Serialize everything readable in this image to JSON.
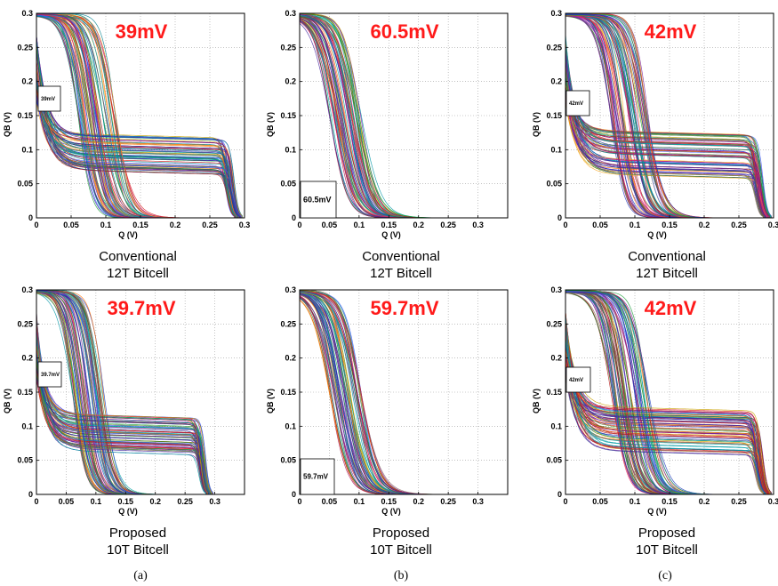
{
  "figure": {
    "subfigure_labels": [
      "(a)",
      "(b)",
      "(c)"
    ]
  },
  "chart_data": [
    {
      "type": "line",
      "subtitle": "39mV",
      "caption_lines": [
        "Conventional",
        "12T Bitcell"
      ],
      "xlabel": "Q (V)",
      "ylabel": "QB (V)",
      "xlim": [
        0,
        0.3
      ],
      "ylim": [
        0,
        0.3
      ],
      "xticks": [
        "0",
        "0.05",
        "0.1",
        "0.15",
        "0.2",
        "0.25",
        "0.3"
      ],
      "yticks": [
        "0",
        "0.05",
        "0.1",
        "0.15",
        "0.2",
        "0.25",
        "0.3"
      ],
      "grid": true,
      "annotation": "39mV",
      "curve_family": "butterfly",
      "switching_threshold_range": [
        0.06,
        0.115
      ],
      "low_plateau_range": [
        0.07,
        0.125
      ],
      "series": [
        {
          "values": [
            [
              0,
              0.298
            ],
            [
              0.05,
              0.296
            ],
            [
              0.07,
              0.26
            ],
            [
              0.085,
              0.15
            ],
            [
              0.1,
              0.02
            ],
            [
              0.15,
              0
            ]
          ]
        },
        {
          "values": [
            [
              0,
              0.2
            ],
            [
              0.03,
              0.12
            ],
            [
              0.1,
              0.1
            ],
            [
              0.25,
              0.08
            ],
            [
              0.29,
              0.02
            ],
            [
              0.298,
              0
            ]
          ]
        }
      ]
    },
    {
      "type": "line",
      "subtitle": "60.5mV",
      "caption_lines": [
        "Conventional",
        "12T Bitcell"
      ],
      "xlabel": "Q (V)",
      "ylabel": "QB (V)",
      "xlim": [
        0,
        0.35
      ],
      "ylim": [
        0,
        0.3
      ],
      "xticks": [
        "0",
        "0.05",
        "0.1",
        "0.15",
        "0.2",
        "0.25",
        "0.3"
      ],
      "yticks": [
        "0",
        "0.05",
        "0.1",
        "0.15",
        "0.2",
        "0.25",
        "0.3"
      ],
      "grid": true,
      "annotation": "60.5mV",
      "curve_family": "sigmoid",
      "switching_threshold_range": [
        0.05,
        0.105
      ],
      "series": [
        {
          "values": [
            [
              0,
              0.298
            ],
            [
              0.04,
              0.29
            ],
            [
              0.065,
              0.2
            ],
            [
              0.08,
              0.1
            ],
            [
              0.1,
              0.02
            ],
            [
              0.18,
              0
            ]
          ]
        }
      ]
    },
    {
      "type": "line",
      "subtitle": "42mV",
      "caption_lines": [
        "Conventional",
        "12T Bitcell"
      ],
      "xlabel": "Q (V)",
      "ylabel": "QB (V)",
      "xlim": [
        0,
        0.3
      ],
      "ylim": [
        0,
        0.3
      ],
      "xticks": [
        "0",
        "0.05",
        "0.1",
        "0.15",
        "0.2",
        "0.25",
        "0.3"
      ],
      "yticks": [
        "0",
        "0.05",
        "0.1",
        "0.15",
        "0.2",
        "0.25",
        "0.3"
      ],
      "grid": true,
      "annotation": "42mV",
      "curve_family": "butterfly",
      "switching_threshold_range": [
        0.065,
        0.12
      ],
      "low_plateau_range": [
        0.065,
        0.13
      ],
      "series": [
        {
          "values": [
            [
              0,
              0.298
            ],
            [
              0.05,
              0.295
            ],
            [
              0.075,
              0.25
            ],
            [
              0.09,
              0.15
            ],
            [
              0.105,
              0.02
            ],
            [
              0.15,
              0
            ]
          ]
        },
        {
          "values": [
            [
              0,
              0.18
            ],
            [
              0.03,
              0.12
            ],
            [
              0.1,
              0.1
            ],
            [
              0.25,
              0.085
            ],
            [
              0.29,
              0.02
            ],
            [
              0.298,
              0
            ]
          ]
        }
      ]
    },
    {
      "type": "line",
      "subtitle": "39.7mV",
      "caption_lines": [
        "Proposed",
        "10T Bitcell"
      ],
      "xlabel": "Q (V)",
      "ylabel": "QB (V)",
      "xlim": [
        0,
        0.35
      ],
      "ylim": [
        0,
        0.3
      ],
      "xticks": [
        "0",
        "0.05",
        "0.1",
        "0.15",
        "0.2",
        "0.25",
        "0.3"
      ],
      "yticks": [
        "0",
        "0.05",
        "0.1",
        "0.15",
        "0.2",
        "0.25",
        "0.3"
      ],
      "grid": true,
      "annotation": "39.7mV",
      "curve_family": "butterfly",
      "switching_threshold_range": [
        0.06,
        0.115
      ],
      "low_plateau_range": [
        0.065,
        0.12
      ],
      "series": [
        {
          "values": [
            [
              0,
              0.298
            ],
            [
              0.05,
              0.296
            ],
            [
              0.07,
              0.26
            ],
            [
              0.085,
              0.15
            ],
            [
              0.1,
              0.02
            ],
            [
              0.15,
              0
            ]
          ]
        },
        {
          "values": [
            [
              0,
              0.19
            ],
            [
              0.03,
              0.12
            ],
            [
              0.1,
              0.095
            ],
            [
              0.25,
              0.08
            ],
            [
              0.29,
              0.02
            ],
            [
              0.298,
              0
            ]
          ]
        }
      ]
    },
    {
      "type": "line",
      "subtitle": "59.7mV",
      "caption_lines": [
        "Proposed",
        "10T Bitcell"
      ],
      "xlabel": "Q (V)",
      "ylabel": "QB (V)",
      "xlim": [
        0,
        0.35
      ],
      "ylim": [
        0,
        0.3
      ],
      "xticks": [
        "0",
        "0.05",
        "0.1",
        "0.15",
        "0.2",
        "0.25",
        "0.3"
      ],
      "yticks": [
        "0",
        "0.05",
        "0.1",
        "0.15",
        "0.2",
        "0.25",
        "0.3"
      ],
      "grid": true,
      "annotation": "59.7mV",
      "curve_family": "sigmoid",
      "switching_threshold_range": [
        0.05,
        0.105
      ],
      "series": [
        {
          "values": [
            [
              0,
              0.298
            ],
            [
              0.04,
              0.29
            ],
            [
              0.065,
              0.2
            ],
            [
              0.08,
              0.1
            ],
            [
              0.1,
              0.02
            ],
            [
              0.18,
              0
            ]
          ]
        }
      ]
    },
    {
      "type": "line",
      "subtitle": "42mV",
      "caption_lines": [
        "Proposed",
        "10T Bitcell"
      ],
      "xlabel": "Q (V)",
      "ylabel": "QB (V)",
      "xlim": [
        0,
        0.3
      ],
      "ylim": [
        0,
        0.3
      ],
      "xticks": [
        "0",
        "0.05",
        "0.1",
        "0.15",
        "0.2",
        "0.25",
        "0.3"
      ],
      "yticks": [
        "0",
        "0.05",
        "0.1",
        "0.15",
        "0.2",
        "0.25",
        "0.3"
      ],
      "grid": true,
      "annotation": "42mV",
      "curve_family": "butterfly",
      "switching_threshold_range": [
        0.065,
        0.12
      ],
      "low_plateau_range": [
        0.065,
        0.13
      ],
      "series": [
        {
          "values": [
            [
              0,
              0.298
            ],
            [
              0.05,
              0.295
            ],
            [
              0.075,
              0.25
            ],
            [
              0.09,
              0.15
            ],
            [
              0.105,
              0.02
            ],
            [
              0.15,
              0
            ]
          ]
        },
        {
          "values": [
            [
              0,
              0.18
            ],
            [
              0.03,
              0.12
            ],
            [
              0.1,
              0.1
            ],
            [
              0.25,
              0.085
            ],
            [
              0.29,
              0.02
            ],
            [
              0.298,
              0
            ]
          ]
        }
      ]
    }
  ]
}
